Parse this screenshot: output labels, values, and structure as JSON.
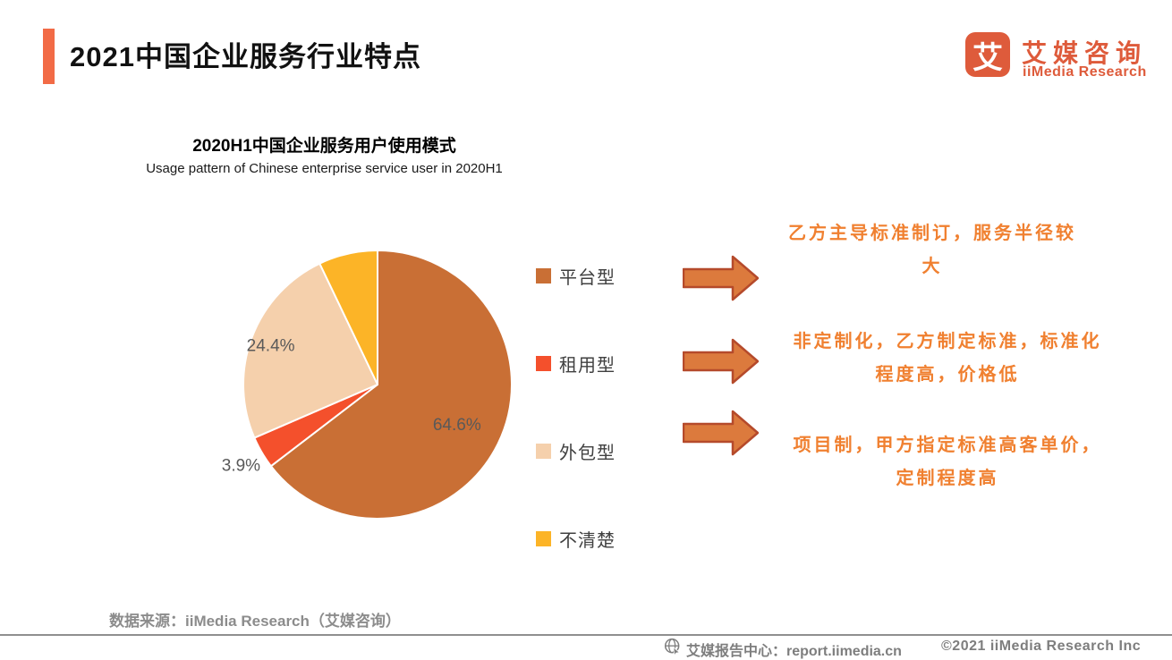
{
  "header": {
    "title": "2021中国企业服务行业特点",
    "logo": {
      "glyph": "艾",
      "name_cn": "艾媒咨询",
      "name_en": "iiMedia Research"
    }
  },
  "chart_data": {
    "type": "pie",
    "title": "2020H1中国企业服务用户使用模式",
    "subtitle": "Usage pattern  of Chinese enterprise service user in  2020H1",
    "start_angle_deg": 0,
    "direction": "clockwise",
    "legend_position": "right",
    "label_color": "#595959",
    "slices": [
      {
        "label": "平台型",
        "value": 64.6,
        "pct_label": "64.6%",
        "color": "#C96F35",
        "label_radius": 0.66
      },
      {
        "label": "租用型",
        "value": 3.9,
        "pct_label": "3.9%",
        "color": "#F4502C",
        "label_radius": 1.18
      },
      {
        "label": "外包型",
        "value": 24.4,
        "pct_label": "24.4%",
        "color": "#F5D0AC",
        "label_radius": 0.85
      },
      {
        "label": "不清楚",
        "value": 7.1,
        "pct_label": "",
        "color": "#FCB427",
        "label_radius": 0
      }
    ]
  },
  "annotations": [
    {
      "text": "乙方主导标准制订，服务半径较\n大"
    },
    {
      "text": "非定制化，乙方制定标准，标准化\n程度高，价格低"
    },
    {
      "text": "项目制，甲方指定标准高客单价，\n定制程度高"
    }
  ],
  "source": "数据来源：iiMedia Research（艾媒咨询）",
  "footer": {
    "report_center": "艾媒报告中心：report.iimedia.cn",
    "copyright": "©2021  iiMedia Research  Inc"
  },
  "colors": {
    "accent_orange": "#F26B46",
    "brand_orange": "#DE5B3B",
    "arrow_fill": "#DC7A3D",
    "arrow_stroke": "#B54A2B",
    "annotation_text": "#F08030"
  }
}
